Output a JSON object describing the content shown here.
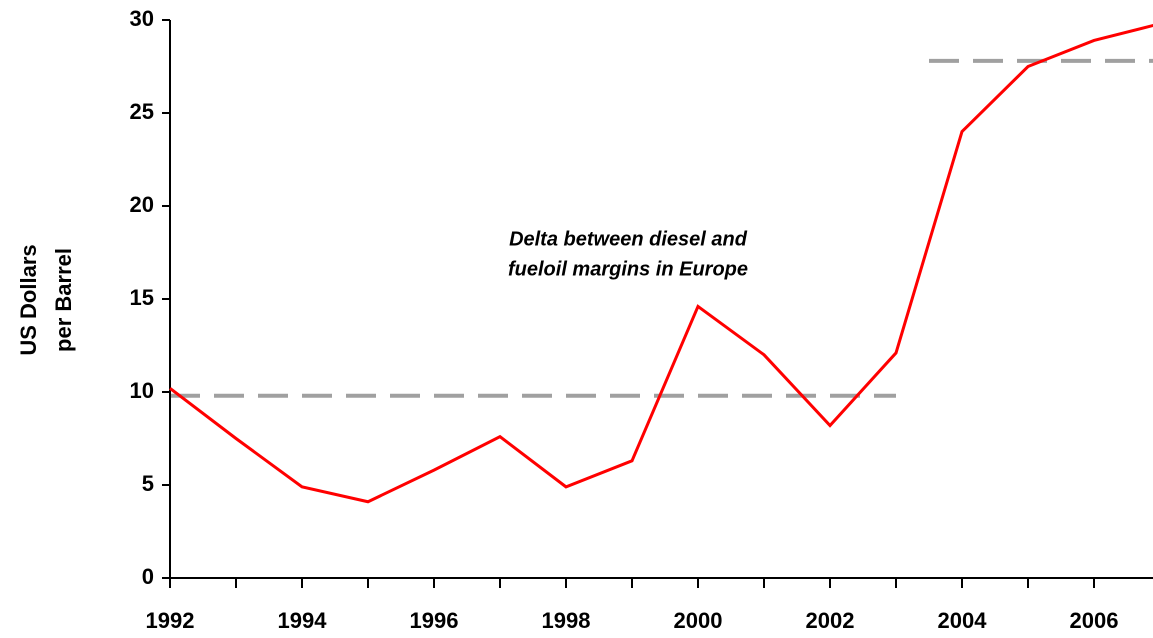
{
  "chart_data": {
    "type": "line",
    "ylabel": [
      "US Dollars",
      "per Barrel"
    ],
    "annotation": [
      "Delta between diesel and",
      "fueloil margins in Europe"
    ],
    "x": [
      1992,
      1993,
      1994,
      1995,
      1996,
      1997,
      1998,
      1999,
      2000,
      2001,
      2002,
      2003,
      2004,
      2005,
      2006,
      2007
    ],
    "series": [
      {
        "name": "Delta",
        "color": "#ff0000",
        "values": [
          10.2,
          7.5,
          4.9,
          4.1,
          5.8,
          7.6,
          4.9,
          6.3,
          14.6,
          12.0,
          8.2,
          12.1,
          24.0,
          27.5,
          28.9,
          29.8
        ]
      }
    ],
    "reference_lines": [
      {
        "x": [
          1992,
          2003
        ],
        "y": 9.8,
        "color": "#a0a0a0"
      },
      {
        "x": [
          2003.5,
          2007
        ],
        "y": 27.8,
        "color": "#a0a0a0"
      }
    ],
    "xlim": [
      1992,
      2007
    ],
    "xticks": [
      1992,
      1994,
      1996,
      1998,
      2000,
      2002,
      2004,
      2006
    ],
    "xminorticks": [
      1993,
      1995,
      1997,
      1999,
      2001,
      2003,
      2005,
      2007
    ],
    "ylim": [
      0,
      30
    ],
    "yticks": [
      0,
      5,
      10,
      15,
      20,
      25,
      30
    ],
    "grid": false
  }
}
